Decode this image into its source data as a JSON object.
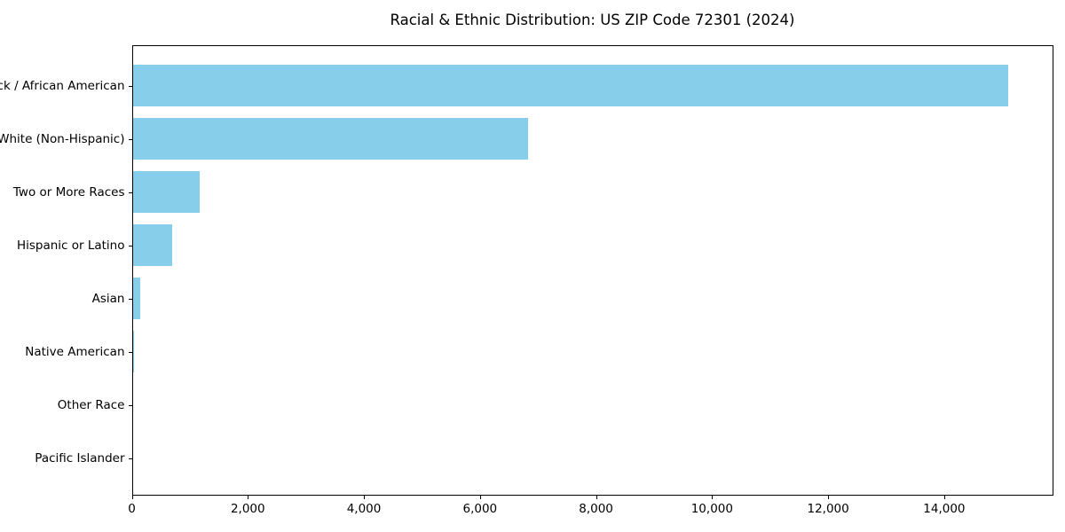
{
  "chart_data": {
    "type": "bar",
    "orientation": "horizontal",
    "title": "Racial & Ethnic Distribution: US ZIP Code 72301 (2024)",
    "categories": [
      "Black / African American",
      "White (Non-Hispanic)",
      "Two or More Races",
      "Hispanic or Latino",
      "Asian",
      "Native American",
      "Other Race",
      "Pacific Islander"
    ],
    "values": [
      15100,
      6830,
      1170,
      690,
      150,
      35,
      10,
      0
    ],
    "xlabel": "",
    "ylabel": "",
    "xlim": [
      0,
      15875
    ],
    "x_ticks": [
      0,
      2000,
      4000,
      6000,
      8000,
      10000,
      12000,
      14000
    ],
    "x_tick_labels": [
      "0",
      "2,000",
      "4,000",
      "6,000",
      "8,000",
      "10,000",
      "12,000",
      "14,000"
    ],
    "bar_color": "#87CEEB",
    "grid": false,
    "legend_position": "none"
  },
  "colors": {
    "bar": "#87CEEB",
    "text": "#000000",
    "spine": "#000000",
    "background": "#ffffff"
  }
}
